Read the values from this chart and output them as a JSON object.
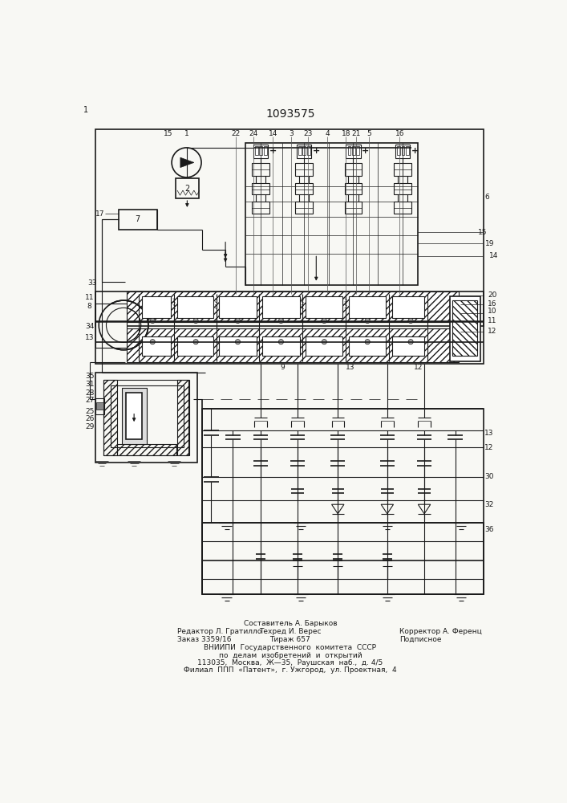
{
  "title": "1093575",
  "bg_color": "#f8f8f4",
  "line_color": "#1a1a1a",
  "footer": {
    "line1": "Составитель А. Барыков",
    "line2_left": "Редактор Л. Гратилло",
    "line2_mid": "Техред И. Верес",
    "line2_right": "Корректор А. Ференц",
    "line3_left": "Заказ 3359/16",
    "line3_mid": "Тираж 657",
    "line3_right": "Подписное",
    "line4": "ВНИИПИ  Государственного  комитета  СССР",
    "line5": "по  делам  изобретений  и  открытий",
    "line6": "113035,  Москва,  Ж—35,  Раушская  наб.,  д. 4/5",
    "line7": "Филиал  ППП  «Патент»,  г. Ужгород,  ул. Проектная,  4"
  }
}
